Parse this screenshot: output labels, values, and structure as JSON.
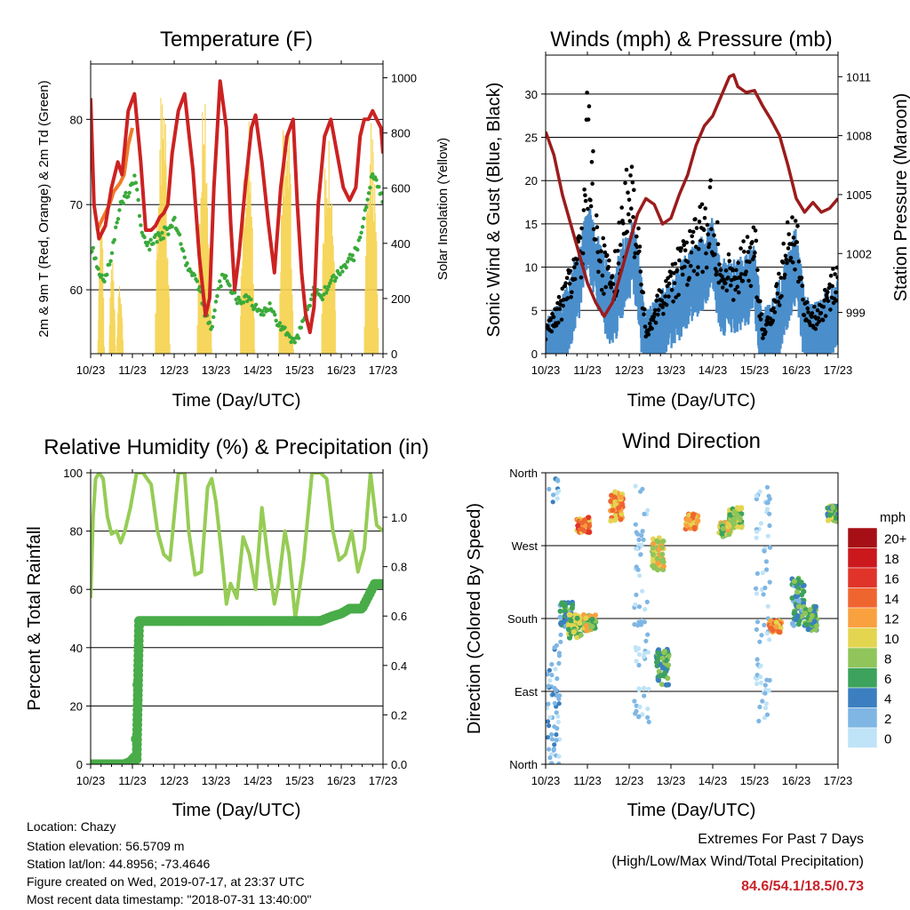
{
  "info": {
    "location": "Location: Chazy",
    "elevation": "Station elevation: 56.5709 m",
    "latlon": "Station lat/lon: 44.8956; -73.4646",
    "created": "Figure created on Wed, 2019-07-17, at 23:37 UTC",
    "recent": "Most recent data timestamp: \"2018-07-31 13:40:00\""
  },
  "extremes": {
    "title": "Extremes For Past 7 Days",
    "subtitle": "(High/Low/Max Wind/Total Precipitation)",
    "values": "84.6/54.1/18.5/0.73",
    "value_color": "#c8232a"
  },
  "colors": {
    "temp_2m": "#cc2222",
    "temp_9m": "#f07a2a",
    "dewpoint": "#3aaa3a",
    "solar": "#f5d24a",
    "wind": "#4a8fcc",
    "gust": "#000000",
    "pressure": "#9b1c1c",
    "rh": "#96cc55",
    "precip": "#48ac48"
  },
  "x_ticks": [
    "10/23",
    "11/23",
    "12/23",
    "13/23",
    "14/23",
    "15/23",
    "16/23",
    "17/23"
  ],
  "chart_data": [
    {
      "type": "line",
      "title": "Temperature (F)",
      "xlabel": "Time (Day/UTC)",
      "ylabel": "2m & 9m T (Red, Orange) & 2m Td (Green)",
      "ylabel_right": "Solar Insolation (Yellow)",
      "ylim": [
        52.5,
        86.5
      ],
      "yticks": [
        60,
        70,
        80
      ],
      "ylim_right": [
        0,
        1050
      ],
      "yticks_right": [
        0,
        200,
        400,
        600,
        800,
        1000
      ],
      "grid": true,
      "series": [
        {
          "key": "temp2m",
          "axis": "left",
          "x": [
            0,
            0.08,
            0.2,
            0.35,
            0.5,
            0.65,
            0.75,
            0.9,
            1.05,
            1.2,
            1.32,
            1.45,
            1.55,
            1.65,
            1.75,
            1.85,
            1.95,
            2.1,
            2.25,
            2.35,
            2.45,
            2.6,
            2.75,
            2.85,
            2.95,
            3.1,
            3.25,
            3.35,
            3.45,
            3.55,
            3.7,
            3.85,
            3.95,
            4.1,
            4.25,
            4.4,
            4.55,
            4.7,
            4.85,
            4.95,
            5.05,
            5.15,
            5.25,
            5.35,
            5.45,
            5.6,
            5.75,
            5.9,
            6.05,
            6.2,
            6.35,
            6.45,
            6.55,
            6.65,
            6.75,
            6.85,
            6.95,
            7.0
          ],
          "y": [
            82.5,
            70,
            66,
            67.5,
            72,
            75,
            73.5,
            81,
            83,
            75,
            67,
            67,
            67.5,
            68.5,
            69,
            70,
            76,
            81,
            83,
            78.5,
            74,
            64,
            57,
            59,
            72,
            84.5,
            79,
            68,
            60,
            64,
            72,
            79,
            80.5,
            75,
            68,
            62,
            72,
            78,
            80,
            70,
            62,
            57,
            55,
            58,
            70,
            78,
            80,
            76,
            72,
            70.5,
            72,
            78,
            80,
            80,
            81,
            80,
            79,
            76
          ]
        },
        {
          "key": "temp9m",
          "axis": "left",
          "x": [
            0.15,
            0.25,
            0.35,
            0.45,
            0.55,
            0.7,
            0.8,
            0.9,
            1.0
          ],
          "y": [
            67,
            68,
            69,
            70,
            71.5,
            72.5,
            73.5,
            77,
            79
          ]
        },
        {
          "key": "dew",
          "axis": "left",
          "x": [
            0,
            0.1,
            0.2,
            0.3,
            0.45,
            0.6,
            0.75,
            0.9,
            1.05,
            1.15,
            1.25,
            1.4,
            1.55,
            1.7,
            1.85,
            2.0,
            2.15,
            2.3,
            2.45,
            2.6,
            2.75,
            2.9,
            3.05,
            3.2,
            3.35,
            3.5,
            3.7,
            3.9,
            4.1,
            4.3,
            4.5,
            4.7,
            4.9,
            5.05,
            5.2,
            5.35,
            5.5,
            5.65,
            5.8,
            5.95,
            6.1,
            6.3,
            6.45,
            6.6,
            6.75,
            6.9,
            7.0
          ],
          "y": [
            65,
            64,
            62,
            61,
            63,
            67,
            70.5,
            71.5,
            73,
            70,
            66,
            65,
            66,
            66.5,
            67,
            68,
            66,
            63,
            62,
            60,
            57,
            55,
            60,
            62,
            60,
            59,
            59,
            58,
            57,
            58,
            56,
            55,
            53.5,
            56,
            58,
            60,
            59,
            60,
            61,
            62,
            63,
            64,
            66,
            70,
            74,
            72,
            70
          ]
        }
      ],
      "solar": {
        "peaks": [
          {
            "center": 0.25,
            "value": 500
          },
          {
            "center": 0.52,
            "value": 350
          },
          {
            "center": 0.7,
            "value": 250
          },
          {
            "center": 1.72,
            "value": 1000
          },
          {
            "center": 2.72,
            "value": 930
          },
          {
            "center": 3.75,
            "value": 920
          },
          {
            "center": 4.68,
            "value": 1000
          },
          {
            "center": 5.7,
            "value": 960
          },
          {
            "center": 6.72,
            "value": 910
          }
        ]
      }
    },
    {
      "type": "line",
      "title": "Winds (mph) & Pressure (mb)",
      "xlabel": "Time (Day/UTC)",
      "ylabel": "Sonic Wind & Gust (Blue, Black)",
      "ylabel_right": "Station Pressure (Maroon)",
      "ylim": [
        0,
        34.5
      ],
      "yticks": [
        0,
        5,
        10,
        15,
        20,
        25,
        30
      ],
      "ylim_right": [
        996.9,
        1012.1
      ],
      "yticks_right": [
        999,
        1002,
        1005,
        1008,
        1011
      ],
      "grid": true,
      "series": [
        {
          "key": "wind",
          "axis": "left",
          "x": [
            0,
            0.3,
            0.6,
            0.9,
            1.0,
            1.3,
            1.6,
            1.9,
            2.1,
            2.4,
            2.7,
            3.0,
            3.4,
            3.8,
            4.0,
            4.2,
            4.5,
            4.8,
            5.0,
            5.2,
            5.5,
            5.8,
            6.0,
            6.2,
            6.5,
            6.8,
            7.0
          ],
          "y": [
            1,
            3,
            6,
            12,
            15,
            10,
            6,
            11,
            13,
            2,
            4,
            6,
            9,
            11,
            13,
            8,
            8,
            9,
            10,
            2,
            4,
            9,
            12,
            4,
            3,
            5,
            6
          ]
        },
        {
          "key": "gust",
          "axis": "left",
          "x": [
            0,
            0.3,
            0.6,
            0.9,
            1.0,
            1.3,
            1.6,
            1.9,
            2.1,
            2.4,
            2.7,
            3.0,
            3.4,
            3.8,
            4.0,
            4.2,
            4.5,
            4.8,
            5.0,
            5.2,
            5.5,
            5.8,
            6.0,
            6.2,
            6.5,
            6.8,
            7.0
          ],
          "y": [
            3,
            6,
            10,
            17,
            30,
            14,
            9,
            20,
            22,
            3,
            7,
            10,
            14,
            17,
            20,
            11,
            11,
            13,
            15,
            3,
            7,
            15,
            18,
            6,
            5,
            9,
            10
          ]
        },
        {
          "key": "pressure",
          "axis": "right",
          "x": [
            0,
            0.2,
            0.4,
            0.6,
            0.8,
            1.0,
            1.2,
            1.4,
            1.6,
            1.8,
            2.0,
            2.2,
            2.4,
            2.6,
            2.8,
            3.0,
            3.2,
            3.4,
            3.6,
            3.8,
            4.0,
            4.2,
            4.4,
            4.5,
            4.6,
            4.8,
            5.0,
            5.2,
            5.4,
            5.6,
            5.8,
            6.0,
            6.2,
            6.4,
            6.6,
            6.8,
            7.0
          ],
          "y": [
            1008.2,
            1007,
            1005,
            1003.5,
            1002,
            1000.5,
            999.5,
            998.8,
            999.5,
            1001,
            1002.5,
            1004,
            1004.8,
            1004.5,
            1003.5,
            1003.8,
            1005,
            1006,
            1007.5,
            1008.5,
            1009,
            1010,
            1011,
            1011.1,
            1010.5,
            1010.2,
            1010.3,
            1009.5,
            1008.8,
            1008,
            1006.5,
            1004.8,
            1004.1,
            1004.6,
            1004.1,
            1004.3,
            1004.8
          ]
        }
      ]
    },
    {
      "type": "line",
      "title": "Relative Humidity (%) & Precipitation (in)",
      "xlabel": "Time (Day/UTC)",
      "ylabel": "Percent & Total Rainfall",
      "ylim": [
        0,
        100
      ],
      "yticks": [
        0,
        20,
        40,
        60,
        80,
        100
      ],
      "ylim_right": [
        0,
        1.18
      ],
      "yticks_right": [
        0.0,
        0.2,
        0.4,
        0.6,
        0.8,
        1.0
      ],
      "ytick_labels_right": [
        "0.0",
        "0.2",
        "0.4",
        "0.6",
        "0.8",
        "1.0"
      ],
      "grid": true,
      "series": [
        {
          "key": "rh",
          "axis": "left",
          "x": [
            0,
            0.06,
            0.12,
            0.2,
            0.3,
            0.4,
            0.5,
            0.62,
            0.72,
            0.82,
            0.95,
            1.1,
            1.25,
            1.45,
            1.6,
            1.75,
            1.9,
            2.1,
            2.25,
            2.35,
            2.5,
            2.65,
            2.8,
            2.9,
            3.0,
            3.15,
            3.25,
            3.35,
            3.5,
            3.65,
            3.8,
            3.95,
            4.1,
            4.25,
            4.4,
            4.5,
            4.65,
            4.75,
            4.9,
            5.1,
            5.3,
            5.5,
            5.65,
            5.8,
            5.95,
            6.1,
            6.25,
            6.4,
            6.55,
            6.7,
            6.85,
            7.0
          ],
          "y": [
            57,
            85,
            98,
            100,
            98,
            85,
            79,
            80,
            76,
            80,
            88,
            100,
            100,
            96,
            80,
            72,
            70,
            100,
            100,
            80,
            65,
            66,
            95,
            98,
            90,
            70,
            55,
            62,
            57,
            78,
            72,
            60,
            88,
            70,
            55,
            62,
            80,
            72,
            50,
            70,
            100,
            100,
            98,
            80,
            70,
            72,
            80,
            66,
            74,
            100,
            82,
            80
          ]
        },
        {
          "key": "precip",
          "axis": "right",
          "x": [
            0,
            0.8,
            0.95,
            1.05,
            1.1,
            1.15,
            1.3,
            2,
            3,
            4,
            4.8,
            5.5,
            5.8,
            6.0,
            6.2,
            6.5,
            6.8,
            7.0
          ],
          "y": [
            0,
            0,
            0.01,
            0.03,
            0.15,
            0.58,
            0.58,
            0.58,
            0.58,
            0.58,
            0.58,
            0.58,
            0.6,
            0.61,
            0.63,
            0.63,
            0.73,
            0.73
          ]
        }
      ]
    },
    {
      "type": "scatter",
      "title": "Wind Direction",
      "xlabel": "Time (Day/UTC)",
      "ylabel": "Direction (Colored By Speed)",
      "yticks": [
        "North",
        "West",
        "South",
        "East",
        "North"
      ],
      "ylim": [
        0,
        360
      ],
      "ytick_values": [
        360,
        270,
        180,
        90,
        0
      ],
      "grid": true,
      "legend_title": "mph",
      "legend_labels": [
        "20+",
        "18",
        "16",
        "14",
        "12",
        "10",
        "8",
        "6",
        "4",
        "2",
        "0"
      ],
      "legend_colors": [
        "#a50f15",
        "#cb181d",
        "#e0342a",
        "#ef6530",
        "#f9a03f",
        "#e3d550",
        "#8fc55a",
        "#3ca25c",
        "#3b7fc0",
        "#7fb6e3",
        "#bfe3f7"
      ],
      "clusters": [
        {
          "t": 0.5,
          "dir": 185,
          "spread": 30,
          "speed": 5
        },
        {
          "t": 0.7,
          "dir": 170,
          "spread": 30,
          "speed": 8
        },
        {
          "t": 0.9,
          "dir": 295,
          "spread": 20,
          "speed": 13
        },
        {
          "t": 1.05,
          "dir": 175,
          "spread": 20,
          "speed": 9
        },
        {
          "t": 1.7,
          "dir": 320,
          "spread": 40,
          "speed": 12
        },
        {
          "t": 2.7,
          "dir": 260,
          "spread": 40,
          "speed": 10
        },
        {
          "t": 2.8,
          "dir": 120,
          "spread": 45,
          "speed": 6
        },
        {
          "t": 3.5,
          "dir": 300,
          "spread": 20,
          "speed": 12
        },
        {
          "t": 4.3,
          "dir": 290,
          "spread": 18,
          "speed": 9
        },
        {
          "t": 4.55,
          "dir": 305,
          "spread": 25,
          "speed": 8
        },
        {
          "t": 5.5,
          "dir": 170,
          "spread": 15,
          "speed": 12
        },
        {
          "t": 6.05,
          "dir": 200,
          "spread": 60,
          "speed": 5
        },
        {
          "t": 6.35,
          "dir": 180,
          "spread": 30,
          "speed": 6
        },
        {
          "t": 6.9,
          "dir": 310,
          "spread": 20,
          "speed": 7
        }
      ],
      "light_points": [
        {
          "t": 0.2,
          "dir": 60,
          "spread": 200,
          "speed": 2
        },
        {
          "t": 2.3,
          "dir": 200,
          "spread": 300,
          "speed": 1
        },
        {
          "t": 5.2,
          "dir": 200,
          "spread": 300,
          "speed": 1
        }
      ]
    }
  ]
}
